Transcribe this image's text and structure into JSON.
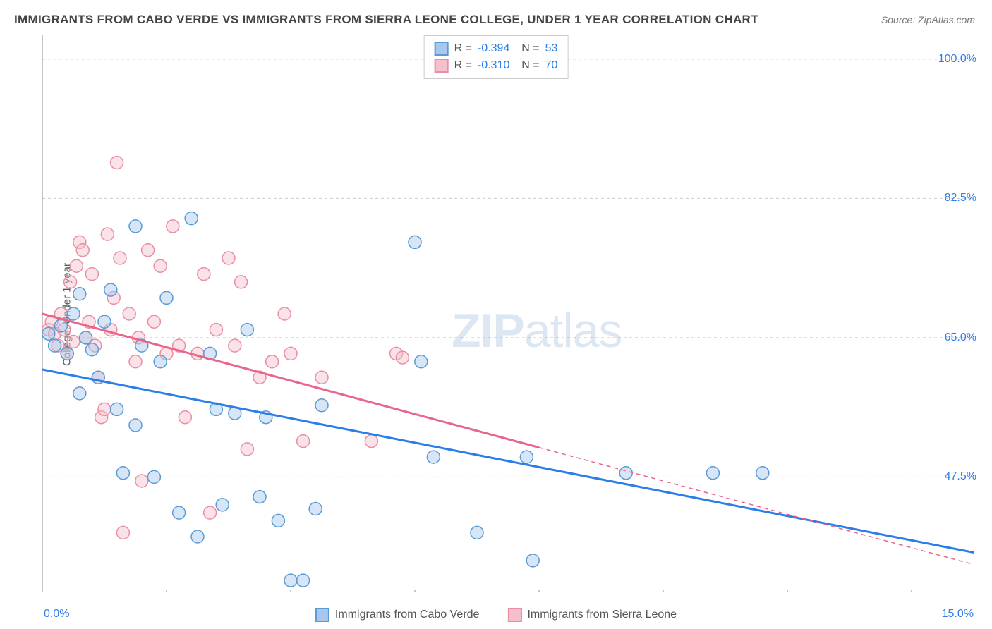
{
  "title": "IMMIGRANTS FROM CABO VERDE VS IMMIGRANTS FROM SIERRA LEONE COLLEGE, UNDER 1 YEAR CORRELATION CHART",
  "source": "Source: ZipAtlas.com",
  "y_axis_label": "College, Under 1 year",
  "watermark_bold": "ZIP",
  "watermark_rest": "atlas",
  "chart": {
    "type": "scatter",
    "background_color": "#ffffff",
    "grid_color": "#cccccc",
    "axis_color": "#888888",
    "x_domain": [
      0,
      15
    ],
    "y_domain": [
      33,
      103
    ],
    "x_ticks": [
      0,
      2,
      4,
      6,
      8,
      10,
      12,
      14
    ],
    "x_tick_labels": {
      "left": "0.0%",
      "right": "15.0%"
    },
    "y_gridlines": [
      47.5,
      65.0,
      82.5,
      100.0
    ],
    "y_tick_labels": [
      "47.5%",
      "65.0%",
      "82.5%",
      "100.0%"
    ],
    "marker_radius": 9,
    "marker_fill_opacity": 0.45,
    "marker_stroke_width": 1.5,
    "line_width": 3
  },
  "series": [
    {
      "name": "Immigrants from Cabo Verde",
      "color_fill": "#a7c7ed",
      "color_stroke": "#5b9bd5",
      "line_color": "#2b7de9",
      "R": "-0.394",
      "N": "53",
      "points": [
        [
          0.1,
          65.5
        ],
        [
          0.2,
          64
        ],
        [
          0.3,
          66.5
        ],
        [
          0.4,
          63
        ],
        [
          0.5,
          68
        ],
        [
          0.6,
          70.5
        ],
        [
          0.6,
          58
        ],
        [
          0.7,
          65
        ],
        [
          0.8,
          63.5
        ],
        [
          0.9,
          60
        ],
        [
          1.0,
          67
        ],
        [
          1.1,
          71
        ],
        [
          1.2,
          56
        ],
        [
          1.3,
          48
        ],
        [
          1.5,
          79
        ],
        [
          1.5,
          54
        ],
        [
          1.6,
          64
        ],
        [
          1.8,
          47.5
        ],
        [
          1.9,
          62
        ],
        [
          2.0,
          70
        ],
        [
          2.2,
          43
        ],
        [
          2.4,
          80
        ],
        [
          2.5,
          40
        ],
        [
          2.7,
          63
        ],
        [
          2.8,
          56
        ],
        [
          2.9,
          44
        ],
        [
          3.1,
          55.5
        ],
        [
          3.3,
          66
        ],
        [
          3.5,
          45
        ],
        [
          3.6,
          55
        ],
        [
          3.8,
          42
        ],
        [
          4.0,
          34.5
        ],
        [
          4.2,
          34.5
        ],
        [
          4.4,
          43.5
        ],
        [
          4.5,
          56.5
        ],
        [
          6.0,
          77
        ],
        [
          6.1,
          62
        ],
        [
          6.3,
          50
        ],
        [
          7.0,
          40.5
        ],
        [
          7.8,
          50
        ],
        [
          7.9,
          37
        ],
        [
          9.4,
          48
        ],
        [
          10.8,
          48
        ],
        [
          11.6,
          48
        ]
      ],
      "trend": {
        "x1": 0,
        "y1": 61,
        "x2": 15,
        "y2": 38,
        "solid_until_x": 15
      }
    },
    {
      "name": "Immigrants from Sierra Leone",
      "color_fill": "#f5c0cb",
      "color_stroke": "#e98ea3",
      "line_color": "#e9658a",
      "R": "-0.310",
      "N": "70",
      "points": [
        [
          0.1,
          66
        ],
        [
          0.15,
          67
        ],
        [
          0.2,
          65.5
        ],
        [
          0.25,
          64
        ],
        [
          0.3,
          68
        ],
        [
          0.35,
          66
        ],
        [
          0.4,
          63
        ],
        [
          0.45,
          72
        ],
        [
          0.5,
          64.5
        ],
        [
          0.55,
          74
        ],
        [
          0.6,
          77
        ],
        [
          0.65,
          76
        ],
        [
          0.7,
          65
        ],
        [
          0.75,
          67
        ],
        [
          0.8,
          73
        ],
        [
          0.85,
          64
        ],
        [
          0.9,
          60
        ],
        [
          0.95,
          55
        ],
        [
          1.0,
          56
        ],
        [
          1.05,
          78
        ],
        [
          1.1,
          66
        ],
        [
          1.15,
          70
        ],
        [
          1.2,
          87
        ],
        [
          1.25,
          75
        ],
        [
          1.3,
          40.5
        ],
        [
          1.4,
          68
        ],
        [
          1.5,
          62
        ],
        [
          1.55,
          65
        ],
        [
          1.6,
          47
        ],
        [
          1.7,
          76
        ],
        [
          1.8,
          67
        ],
        [
          1.9,
          74
        ],
        [
          2.0,
          63
        ],
        [
          2.1,
          79
        ],
        [
          2.2,
          64
        ],
        [
          2.3,
          55
        ],
        [
          2.5,
          63
        ],
        [
          2.6,
          73
        ],
        [
          2.7,
          43
        ],
        [
          2.8,
          66
        ],
        [
          3.0,
          75
        ],
        [
          3.1,
          64
        ],
        [
          3.2,
          72
        ],
        [
          3.3,
          51
        ],
        [
          3.5,
          60
        ],
        [
          3.7,
          62
        ],
        [
          3.9,
          68
        ],
        [
          4.0,
          63
        ],
        [
          4.2,
          52
        ],
        [
          4.5,
          60
        ],
        [
          5.3,
          52
        ],
        [
          5.7,
          63
        ],
        [
          5.8,
          62.5
        ]
      ],
      "trend": {
        "x1": 0,
        "y1": 68,
        "x2": 15,
        "y2": 36.5,
        "solid_until_x": 8
      }
    }
  ],
  "legend_bottom": [
    {
      "label": "Immigrants from Cabo Verde",
      "fill": "#a7c7ed",
      "stroke": "#5b9bd5"
    },
    {
      "label": "Immigrants from Sierra Leone",
      "fill": "#f5c0cb",
      "stroke": "#e98ea3"
    }
  ]
}
